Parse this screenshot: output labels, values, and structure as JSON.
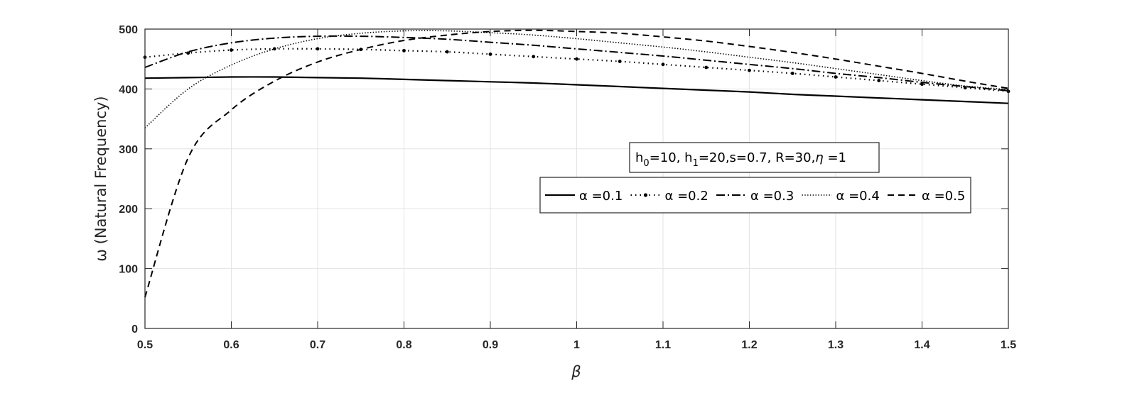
{
  "chart_data": {
    "type": "line",
    "xlabel": "β",
    "ylabel": "ω (Natural Frequency)",
    "xlim": [
      0.5,
      1.5
    ],
    "ylim": [
      0,
      500
    ],
    "xticks": [
      "0.5",
      "0.6",
      "0.7",
      "0.8",
      "0.9",
      "1",
      "1.1",
      "1.2",
      "1.3",
      "1.4",
      "1.5"
    ],
    "yticks": [
      "0",
      "100",
      "200",
      "300",
      "400",
      "500"
    ],
    "grid": true,
    "annotation": "h0=10, h1=20,s=0.7, R=30, η =1",
    "annotation_parts": {
      "h0_base": "h",
      "h0_sub": "0",
      "h0_rest": "=10, ",
      "h1_base": "h",
      "h1_sub": "1",
      "h1_rest": "=20,s=0.7, R=30,",
      "eta": "η",
      "eta_rest": " =1"
    },
    "legend_position": "center-right",
    "x": [
      0.5,
      0.55,
      0.6,
      0.65,
      0.7,
      0.75,
      0.8,
      0.85,
      0.9,
      0.95,
      1.0,
      1.05,
      1.1,
      1.15,
      1.2,
      1.25,
      1.3,
      1.35,
      1.4,
      1.45,
      1.5
    ],
    "series": [
      {
        "name": "α =0.1",
        "style": "solid",
        "values": [
          418,
          419,
          420,
          420,
          419,
          418,
          416,
          414,
          412,
          410,
          407,
          404,
          401,
          398,
          395,
          391,
          388,
          385,
          382,
          379,
          376
        ]
      },
      {
        "name": "α =0.2",
        "style": "dot-dash-marker",
        "values": [
          453,
          460,
          465,
          467,
          467,
          466,
          464,
          462,
          458,
          454,
          450,
          446,
          441,
          436,
          431,
          426,
          420,
          414,
          408,
          402,
          396
        ]
      },
      {
        "name": "α =0.3",
        "style": "dash-dot",
        "values": [
          436,
          462,
          477,
          485,
          488,
          488,
          486,
          483,
          478,
          473,
          467,
          461,
          455,
          448,
          441,
          434,
          426,
          419,
          411,
          404,
          397
        ]
      },
      {
        "name": "α =0.4",
        "style": "dotted",
        "values": [
          335,
          400,
          440,
          467,
          484,
          493,
          497,
          497,
          494,
          490,
          484,
          477,
          470,
          462,
          453,
          444,
          434,
          424,
          414,
          405,
          399
        ]
      },
      {
        "name": "α =0.5",
        "style": "dashed",
        "values": [
          52,
          285,
          365,
          413,
          445,
          466,
          481,
          490,
          496,
          498,
          496,
          493,
          487,
          480,
          471,
          461,
          450,
          438,
          426,
          413,
          401
        ]
      }
    ]
  }
}
